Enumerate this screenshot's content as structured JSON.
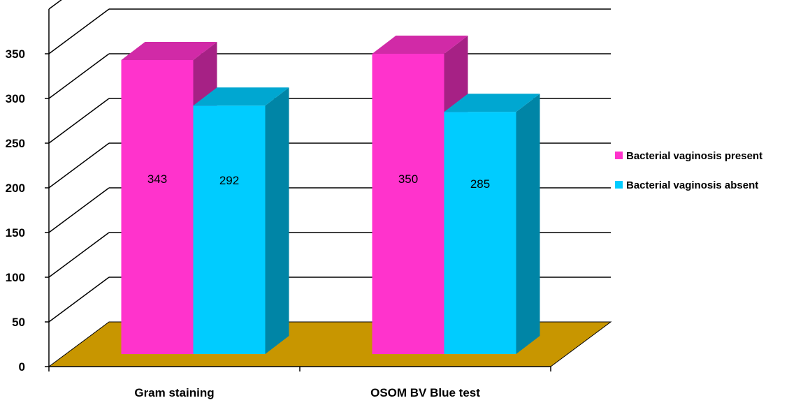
{
  "chart_data": {
    "type": "bar",
    "categories": [
      "Gram staining",
      "OSOM BV Blue test"
    ],
    "series": [
      {
        "name": "Bacterial vaginosis present",
        "values": [
          343,
          350
        ],
        "color": "#FF33CC"
      },
      {
        "name": "Bacterial vaginosis absent",
        "values": [
          292,
          285
        ],
        "color": "#00CCFF"
      }
    ],
    "yticks": [
      0,
      50,
      100,
      150,
      200,
      250,
      300,
      350
    ],
    "ylim": [
      0,
      400
    ],
    "grid": true,
    "legend_position": "right",
    "floor_color": "#C89600",
    "style": "3d-clustered-column"
  }
}
